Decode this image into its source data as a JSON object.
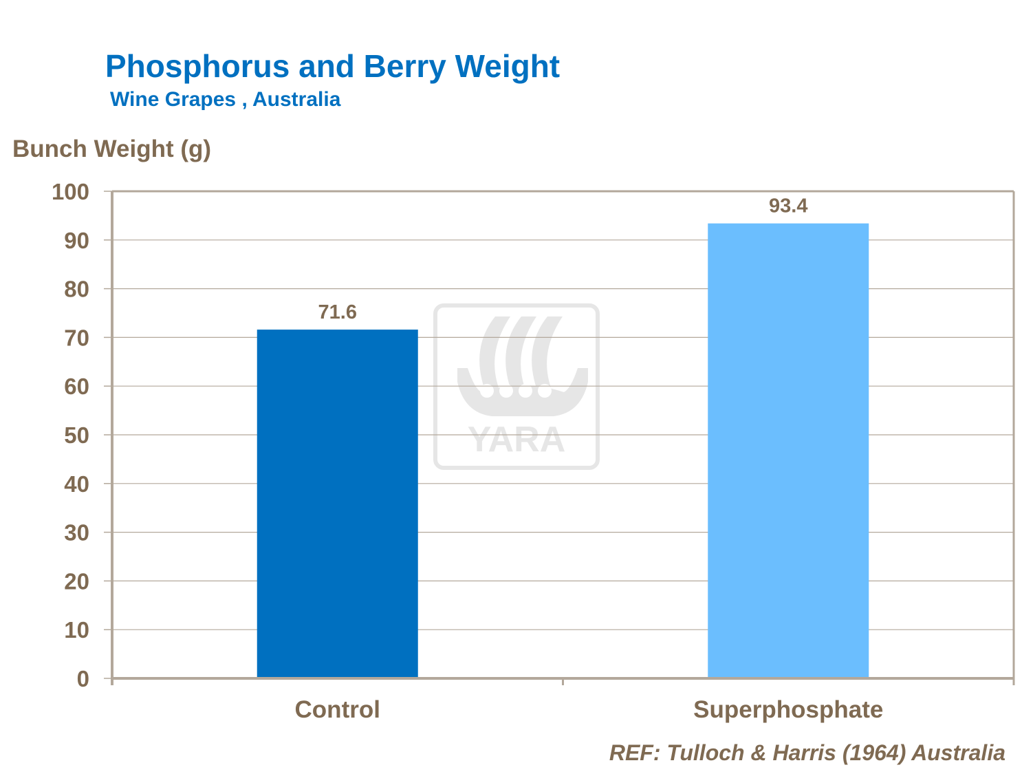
{
  "chart_data": {
    "type": "bar",
    "title": "Phosphorus and Berry Weight",
    "subtitle": "Wine Grapes , Australia",
    "ylabel": "Bunch Weight (g)",
    "xlabel": "",
    "categories": [
      "Control",
      "Superphosphate"
    ],
    "values": [
      71.6,
      93.4
    ],
    "data_labels": [
      "71.6",
      "93.4"
    ],
    "bar_colors": [
      "#0070c0",
      "#6bbefe"
    ],
    "ylim": [
      0,
      100
    ],
    "yticks": [
      0,
      10,
      20,
      30,
      40,
      50,
      60,
      70,
      80,
      90,
      100
    ],
    "grid": true,
    "legend": "none",
    "reference": "REF: Tulloch & Harris (1964) Australia",
    "watermark": "YARA",
    "colors": {
      "title": "#0070c0",
      "text": "#7f6a52",
      "grid": "#b3a89b",
      "axis": "#b3a89b"
    }
  }
}
